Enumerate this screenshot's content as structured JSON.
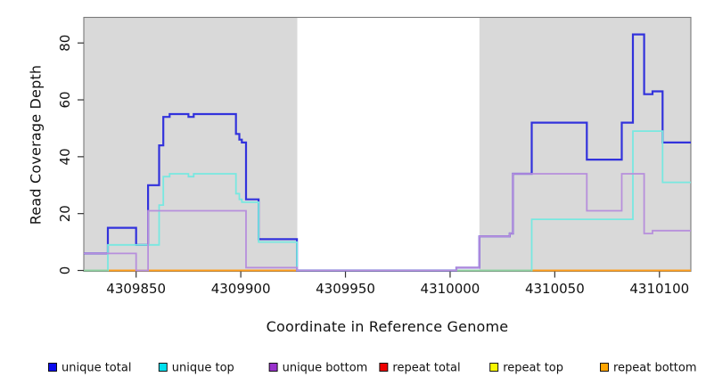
{
  "chart_data": {
    "type": "line",
    "subtype": "step",
    "title": "",
    "xlabel": "Coordinate in Reference Genome",
    "ylabel": "Read Coverage Depth",
    "xlim": [
      4309825,
      4310115
    ],
    "ylim": [
      0,
      89
    ],
    "x_ticks": [
      4309850,
      4309900,
      4309950,
      4310000,
      4310050,
      4310100
    ],
    "y_ticks": [
      0,
      20,
      40,
      60,
      80
    ],
    "grid": false,
    "legend_position": "bottom",
    "shade_color": "#d9d9d9",
    "shaded_regions": [
      {
        "from": 4309825,
        "to": 4309927
      },
      {
        "from": 4310014,
        "to": 4310115
      }
    ],
    "series": [
      {
        "name": "unique total",
        "line_color": "#3232dc",
        "legend_color": "#0b0bee",
        "steps": [
          [
            4309825,
            6
          ],
          [
            4309836.5,
            15
          ],
          [
            4309850,
            9
          ],
          [
            4309855.7,
            30
          ],
          [
            4309861,
            44
          ],
          [
            4309863,
            54
          ],
          [
            4309866,
            55
          ],
          [
            4309875,
            54
          ],
          [
            4309877.5,
            55
          ],
          [
            4309897.7,
            48
          ],
          [
            4309899.3,
            46
          ],
          [
            4309900.5,
            45
          ],
          [
            4309902.5,
            25
          ],
          [
            4309908.5,
            11
          ],
          [
            4309926.8,
            0
          ],
          [
            4310003,
            1
          ],
          [
            4310014,
            12
          ],
          [
            4310028.5,
            13
          ],
          [
            4310030,
            34
          ],
          [
            4310039,
            52
          ],
          [
            4310065.3,
            39
          ],
          [
            4310082,
            52
          ],
          [
            4310087.3,
            83
          ],
          [
            4310092.7,
            62
          ],
          [
            4310096.7,
            63
          ],
          [
            4310101.5,
            45
          ],
          [
            4310115,
            45
          ]
        ]
      },
      {
        "name": "unique top",
        "line_color": "#78e8e0",
        "legend_color": "#00e0ee",
        "steps": [
          [
            4309825,
            0
          ],
          [
            4309836.5,
            9
          ],
          [
            4309861,
            23
          ],
          [
            4309863,
            33
          ],
          [
            4309866,
            34
          ],
          [
            4309875,
            33
          ],
          [
            4309877.5,
            34
          ],
          [
            4309897.7,
            27
          ],
          [
            4309899.3,
            25
          ],
          [
            4309900.5,
            24
          ],
          [
            4309908.5,
            10
          ],
          [
            4309926.8,
            0
          ],
          [
            4310039,
            18
          ],
          [
            4310087.3,
            49
          ],
          [
            4310101.5,
            31
          ],
          [
            4310115,
            31
          ]
        ]
      },
      {
        "name": "unique bottom",
        "line_color": "#b78fdc",
        "legend_color": "#9932cc",
        "steps": [
          [
            4309825,
            6
          ],
          [
            4309850,
            0
          ],
          [
            4309855.7,
            21
          ],
          [
            4309902.5,
            1
          ],
          [
            4309926.8,
            0
          ],
          [
            4310003,
            1
          ],
          [
            4310014,
            12
          ],
          [
            4310028.5,
            13
          ],
          [
            4310030,
            34
          ],
          [
            4310065.3,
            21
          ],
          [
            4310082,
            34
          ],
          [
            4310092.7,
            13
          ],
          [
            4310096.7,
            14
          ],
          [
            4310115,
            14
          ]
        ]
      },
      {
        "name": "repeat total",
        "line_color": "#dd4444",
        "legend_color": "#ee0000",
        "steps": [
          [
            4309825,
            0
          ],
          [
            4310115,
            0
          ]
        ]
      },
      {
        "name": "repeat top",
        "line_color": "#f0f060",
        "legend_color": "#f8f800",
        "steps": [
          [
            4309825,
            0
          ],
          [
            4310115,
            0
          ]
        ]
      },
      {
        "name": "repeat bottom",
        "line_color": "#ff9d1c",
        "legend_color": "#ffa500",
        "steps": [
          [
            4309825,
            0
          ],
          [
            4310115,
            0
          ]
        ]
      }
    ],
    "zero_overlays": [
      {
        "color": "#8ecf9e",
        "from": 4309825,
        "to": 4309836.5
      },
      {
        "color": "#8ecf9e",
        "from": 4310003,
        "to": 4310039
      }
    ]
  }
}
